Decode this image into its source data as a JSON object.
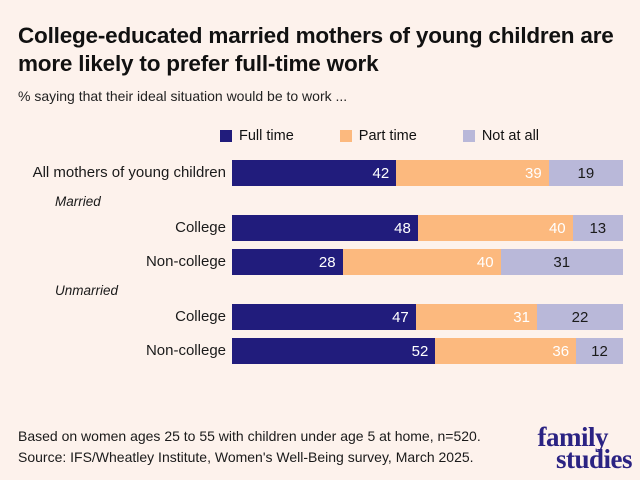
{
  "title": "College-educated married mothers of young children are more likely to prefer full-time work",
  "subtitle": "% saying that their ideal situation would be to work ...",
  "legend": [
    {
      "label": "Full time",
      "color": "#211c7c"
    },
    {
      "label": "Part time",
      "color": "#fcb97e"
    },
    {
      "label": "Not at all",
      "color": "#b9b8d9"
    }
  ],
  "chart_data": {
    "type": "bar",
    "orientation": "horizontal",
    "stacked": true,
    "value_unit": "percent",
    "xlim": [
      0,
      100
    ],
    "grid": false,
    "legend_position": "top",
    "value_labels_shown": true,
    "series_names": [
      "Full time",
      "Part time",
      "Not at all"
    ],
    "segment_colors": [
      "#211c7c",
      "#fcb97e",
      "#b9b8d9"
    ],
    "value_text_colors": [
      "#ffffff",
      "#ffffff",
      "#1a1a1a"
    ],
    "groups": [
      {
        "section": "",
        "label": "All mothers of young children",
        "values": [
          42,
          39,
          19
        ]
      },
      {
        "section": "Married",
        "label": "College",
        "values": [
          48,
          40,
          13
        ]
      },
      {
        "section": "Married",
        "label": "Non-college",
        "values": [
          28,
          40,
          31
        ]
      },
      {
        "section": "Unmarried",
        "label": "College",
        "values": [
          47,
          31,
          22
        ]
      },
      {
        "section": "Unmarried",
        "label": "Non-college",
        "values": [
          52,
          36,
          12
        ]
      }
    ]
  },
  "footer": {
    "line1": "Based on women ages 25 to 55 with children under age 5 at home, n=520.",
    "line2": "Source: IFS/Wheatley Institute, Women's Well-Being survey, March 2025."
  },
  "logo": {
    "line1": "family",
    "line2": "studies"
  },
  "colors": {
    "background": "#fdf2ec",
    "full_time": "#211c7c",
    "part_time": "#fcb97e",
    "not_at_all": "#b9b8d9",
    "logo": "#2b2383",
    "title_text": "#111111"
  }
}
